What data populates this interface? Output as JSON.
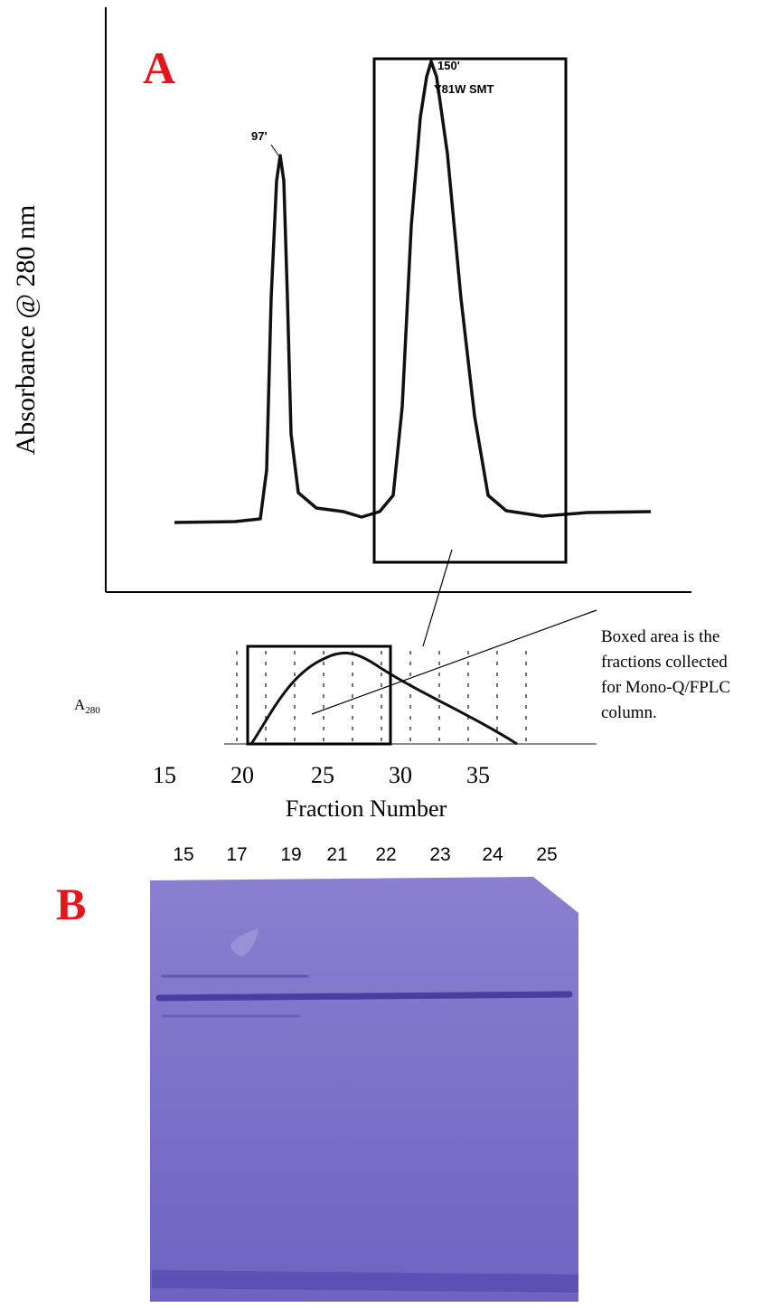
{
  "panel_a": {
    "label": "A",
    "y_axis_label": "Absorbance @ 280 nm",
    "peaks": [
      {
        "label": "97'"
      },
      {
        "label": "150'",
        "name": "Y81W SMT"
      }
    ],
    "inset": {
      "y_axis_label": {
        "text": "A",
        "subscript": "280"
      },
      "note": [
        "Boxed area is the",
        "fractions collected",
        "for Mono-Q/FPLC",
        "column."
      ],
      "x_ticks": [
        "15",
        "20",
        "25",
        "30",
        "35"
      ],
      "x_axis_label": "Fraction Number"
    }
  },
  "panel_b": {
    "label": "B",
    "lanes": [
      "15",
      "17",
      "19",
      "21",
      "22",
      "23",
      "24",
      "25"
    ]
  }
}
